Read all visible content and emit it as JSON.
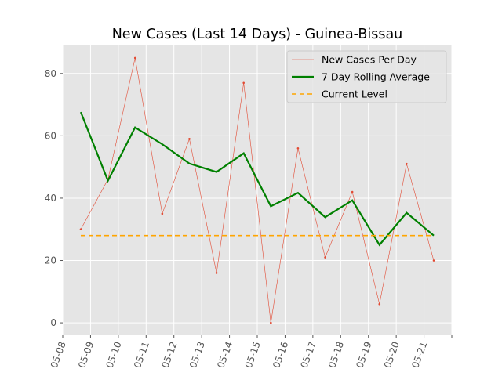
{
  "chart_data": {
    "type": "line",
    "title": "New Cases (Last 14 Days) - Guinea-Bissau",
    "xlabel": "",
    "ylabel": "",
    "x": [
      "05-08",
      "05-09",
      "05-10",
      "05-11",
      "05-12",
      "05-13",
      "05-14",
      "05-15",
      "05-16",
      "05-17",
      "05-18",
      "05-19",
      "05-20",
      "05-21"
    ],
    "xlim": [
      "05-08",
      "05-21"
    ],
    "ylim": [
      -4,
      89
    ],
    "yticks": [
      0,
      20,
      40,
      60,
      80
    ],
    "grid": true,
    "legend": "top-right",
    "series": [
      {
        "name": "New Cases Per Day",
        "color": "#E24A33",
        "style": "thin-line-with-dots",
        "values": [
          30,
          46,
          85,
          35,
          59,
          16,
          77,
          0,
          56,
          21,
          42,
          6,
          51,
          20
        ]
      },
      {
        "name": "7 Day Rolling Average",
        "color": "#008000",
        "style": "thick-line",
        "values": [
          67.6,
          45.6,
          62.7,
          57.3,
          51.1,
          48.4,
          54.4,
          37.4,
          41.7,
          33.9,
          39.3,
          25.0,
          35.3,
          28.0
        ]
      },
      {
        "name": "Current Level",
        "color": "#FFA500",
        "style": "dashed",
        "values": [
          28,
          28,
          28,
          28,
          28,
          28,
          28,
          28,
          28,
          28,
          28,
          28,
          28,
          28
        ]
      }
    ],
    "colors": {
      "axes_bg": "#E5E5E5",
      "grid": "#FFFFFF",
      "tick_text": "#555555"
    }
  }
}
